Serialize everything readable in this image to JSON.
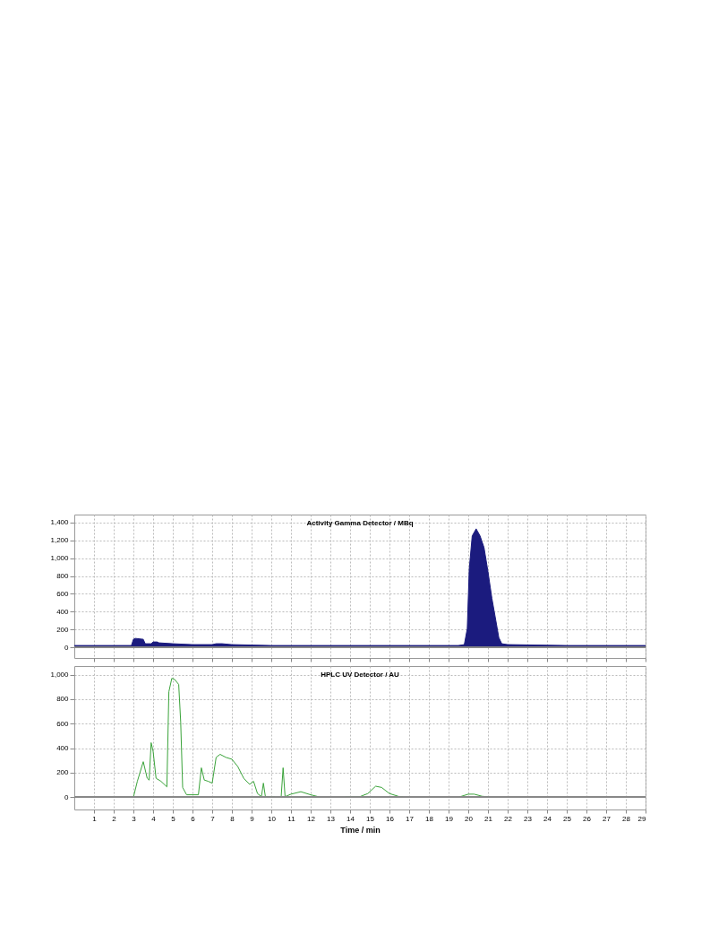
{
  "chart_data": [
    {
      "type": "area",
      "title": "Activity Gamma Detector / MBq",
      "color": "#1b1b7e",
      "x": [
        0,
        1,
        2,
        2.9,
        3.0,
        3.1,
        3.5,
        3.6,
        3.9,
        4.0,
        4.2,
        4.3,
        5,
        6,
        7,
        7.2,
        7.5,
        8,
        10,
        15,
        19.5,
        19.8,
        19.95,
        20.05,
        20.2,
        20.4,
        20.6,
        20.8,
        21.0,
        21.2,
        21.4,
        21.55,
        21.7,
        22,
        25,
        29
      ],
      "values": [
        20,
        20,
        20,
        20,
        90,
        100,
        90,
        40,
        40,
        60,
        60,
        50,
        40,
        30,
        30,
        40,
        40,
        30,
        20,
        20,
        20,
        30,
        210,
        880,
        1250,
        1330,
        1250,
        1120,
        850,
        550,
        300,
        110,
        40,
        30,
        20,
        20
      ],
      "xlim": [
        0,
        29
      ],
      "xticks": [
        1,
        2,
        3,
        4,
        5,
        6,
        7,
        8,
        9,
        10,
        11,
        12,
        13,
        14,
        15,
        16,
        17,
        18,
        19,
        20,
        21,
        22,
        23,
        24,
        25,
        26,
        27,
        28,
        29
      ],
      "ylim": [
        -120,
        1490
      ],
      "yticks": [
        0,
        200,
        400,
        600,
        800,
        {
          "value": 1000,
          "label": "1,000"
        },
        {
          "value": 1200,
          "label": "1,200"
        },
        {
          "value": 1400,
          "label": "1,400"
        }
      ],
      "grid": true,
      "tick_labels": "y"
    },
    {
      "type": "line",
      "title": "HPLC UV Detector / AU",
      "xlabel": "Time / min",
      "color": "#3aa33a",
      "x": [
        0,
        3.0,
        3.2,
        3.5,
        3.7,
        3.8,
        3.9,
        4.0,
        4.15,
        4.4,
        4.7,
        4.8,
        4.95,
        5.1,
        5.3,
        5.4,
        5.5,
        5.7,
        6.0,
        6.3,
        6.45,
        6.6,
        6.8,
        7.0,
        7.2,
        7.4,
        7.7,
        8.0,
        8.3,
        8.6,
        8.9,
        9.1,
        9.3,
        9.5,
        9.6,
        9.7,
        10.0,
        10.5,
        10.6,
        10.7,
        11.0,
        11.5,
        12.0,
        12.5,
        14.5,
        14.9,
        15.3,
        15.6,
        16.0,
        16.5,
        17,
        19.5,
        20.0,
        20.3,
        20.7,
        21.2,
        29
      ],
      "values": [
        0,
        0,
        130,
        290,
        155,
        140,
        445,
        375,
        155,
        130,
        85,
        860,
        970,
        960,
        920,
        615,
        80,
        20,
        20,
        20,
        240,
        140,
        130,
        115,
        325,
        350,
        325,
        310,
        250,
        155,
        105,
        130,
        30,
        5,
        115,
        5,
        5,
        0,
        240,
        5,
        25,
        45,
        20,
        0,
        5,
        30,
        90,
        80,
        30,
        5,
        0,
        0,
        25,
        25,
        8,
        0,
        0
      ],
      "xlim": [
        0,
        29
      ],
      "xticks": [
        1,
        2,
        3,
        4,
        5,
        6,
        7,
        8,
        9,
        10,
        11,
        12,
        13,
        14,
        15,
        16,
        17,
        18,
        19,
        20,
        21,
        22,
        23,
        24,
        25,
        26,
        27,
        28,
        29
      ],
      "ylim": [
        -100,
        1070
      ],
      "yticks": [
        0,
        200,
        400,
        600,
        800,
        {
          "value": 1000,
          "label": "1,000"
        }
      ],
      "grid": true
    }
  ]
}
